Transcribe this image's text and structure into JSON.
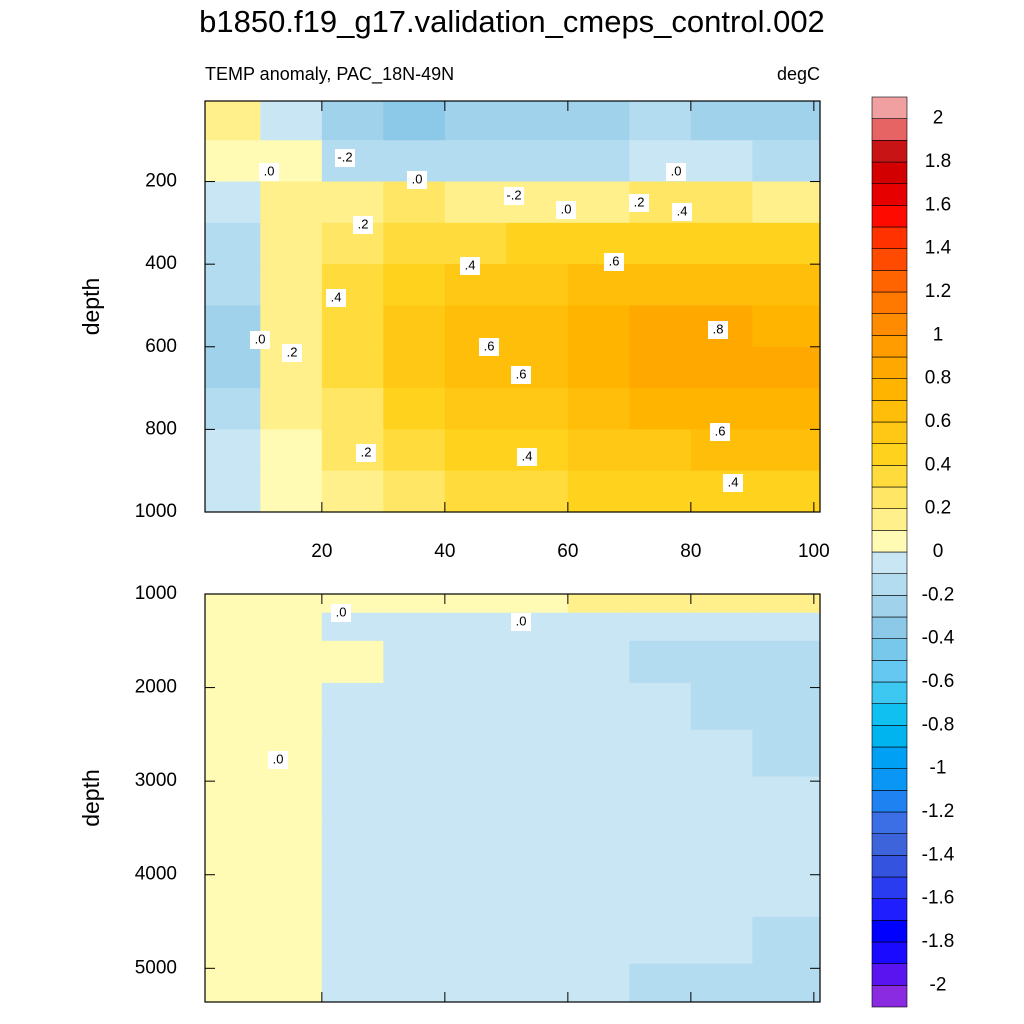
{
  "title": "b1850.f19_g17.validation_cmeps_control.002",
  "colorbar": {
    "ticks": [
      -2,
      -1.8,
      -1.6,
      -1.4,
      -1.2,
      -1,
      -0.8,
      -0.6,
      -0.4,
      -0.2,
      0,
      0.2,
      0.4,
      0.6,
      0.8,
      1,
      1.2,
      1.4,
      1.6,
      1.8,
      2
    ],
    "colors": [
      "#8a2be2",
      "#5a14f0",
      "#1a0aff",
      "#0000ff",
      "#1e1eff",
      "#2a3cf0",
      "#3454e0",
      "#3e64dc",
      "#3c6ee6",
      "#1e82f0",
      "#0a96f5",
      "#00a0f5",
      "#00b4f0",
      "#10c0f0",
      "#3cc8f0",
      "#64c8f0",
      "#78c8ec",
      "#8cc8e8",
      "#a0d2ec",
      "#b4dcf0",
      "#c8e6f4",
      "#fffab4",
      "#fff08c",
      "#ffe664",
      "#ffdc3c",
      "#ffd21e",
      "#ffc814",
      "#ffbe0a",
      "#ffb400",
      "#ffa800",
      "#ff9c00",
      "#ff8c00",
      "#ff7800",
      "#ff6400",
      "#ff4b00",
      "#ff3200",
      "#ff0a00",
      "#e60000",
      "#d20000",
      "#c81414",
      "#e66464",
      "#f0a0a0"
    ]
  },
  "chart_data": [
    {
      "type": "contour",
      "subtitle": "TEMP anomaly, PAC_18N-49N",
      "units": "degC",
      "ylabel": "depth",
      "x": [
        5,
        15,
        25,
        35,
        45,
        55,
        65,
        75,
        85,
        95
      ],
      "y": [
        50,
        150,
        250,
        350,
        450,
        550,
        650,
        750,
        850,
        950
      ],
      "z": [
        [
          0.1,
          -0.1,
          -0.3,
          -0.4,
          -0.3,
          -0.3,
          -0.3,
          -0.2,
          -0.3,
          -0.3
        ],
        [
          0.05,
          0.0,
          -0.2,
          -0.2,
          -0.2,
          -0.2,
          -0.2,
          -0.1,
          -0.1,
          -0.2
        ],
        [
          -0.1,
          0.1,
          0.1,
          0.2,
          0.1,
          0.1,
          0.1,
          0.2,
          0.2,
          0.1
        ],
        [
          -0.2,
          0.1,
          0.2,
          0.3,
          0.3,
          0.4,
          0.4,
          0.4,
          0.4,
          0.4
        ],
        [
          -0.2,
          0.1,
          0.3,
          0.4,
          0.5,
          0.5,
          0.6,
          0.6,
          0.6,
          0.6
        ],
        [
          -0.3,
          0.1,
          0.3,
          0.5,
          0.6,
          0.6,
          0.7,
          0.8,
          0.8,
          0.7
        ],
        [
          -0.3,
          0.1,
          0.3,
          0.5,
          0.6,
          0.6,
          0.7,
          0.8,
          0.8,
          0.8
        ],
        [
          -0.2,
          0.1,
          0.2,
          0.4,
          0.5,
          0.5,
          0.6,
          0.7,
          0.7,
          0.7
        ],
        [
          -0.1,
          0.0,
          0.2,
          0.3,
          0.4,
          0.4,
          0.5,
          0.5,
          0.6,
          0.6
        ],
        [
          -0.1,
          0.0,
          0.1,
          0.2,
          0.3,
          0.3,
          0.4,
          0.4,
          0.4,
          0.4
        ]
      ],
      "xlim": [
        1,
        101
      ],
      "ylim": [
        1000,
        5
      ],
      "xticks": [
        20,
        40,
        60,
        80,
        100
      ],
      "yticks": [
        200,
        400,
        600,
        800,
        1000
      ],
      "xtick_labels": true,
      "contour_labels": [
        ".0",
        "-.2",
        ".0",
        "-.2",
        ".0",
        ".2",
        ".4",
        ".0",
        ".2",
        ".4",
        ".6",
        ".4",
        ".0",
        ".2",
        ".6",
        ".6",
        ".8",
        ".6",
        ".2",
        ".4",
        ".4"
      ]
    },
    {
      "type": "contour",
      "ylabel": "depth",
      "x": [
        5,
        15,
        25,
        35,
        45,
        55,
        65,
        75,
        85,
        95
      ],
      "y": [
        1100,
        1300,
        1700,
        2200,
        2700,
        3200,
        3700,
        4200,
        4700,
        5200
      ],
      "z": [
        [
          0.05,
          0.05,
          0.05,
          0.05,
          0.05,
          0.05,
          0.1,
          0.1,
          0.1,
          0.1
        ],
        [
          0.05,
          0.05,
          -0.05,
          -0.05,
          -0.05,
          -0.05,
          -0.05,
          -0.05,
          -0.05,
          -0.05
        ],
        [
          0.05,
          0.05,
          0.05,
          -0.05,
          -0.05,
          -0.05,
          -0.05,
          -0.15,
          -0.15,
          -0.15
        ],
        [
          0.05,
          0.05,
          -0.05,
          -0.05,
          -0.05,
          -0.05,
          -0.05,
          -0.05,
          -0.15,
          -0.15
        ],
        [
          0.05,
          0.05,
          -0.05,
          -0.05,
          -0.05,
          -0.05,
          -0.05,
          -0.05,
          -0.05,
          -0.15
        ],
        [
          0.05,
          0.05,
          -0.05,
          -0.05,
          -0.05,
          -0.05,
          -0.05,
          -0.05,
          -0.05,
          -0.05
        ],
        [
          0.05,
          0.05,
          -0.05,
          -0.05,
          -0.05,
          -0.05,
          -0.05,
          -0.05,
          -0.05,
          -0.05
        ],
        [
          0.05,
          0.05,
          -0.05,
          -0.05,
          -0.05,
          -0.05,
          -0.05,
          -0.05,
          -0.05,
          -0.05
        ],
        [
          0.05,
          0.05,
          -0.05,
          -0.05,
          -0.05,
          -0.05,
          -0.05,
          -0.05,
          -0.05,
          -0.15
        ],
        [
          0.05,
          0.05,
          -0.05,
          -0.05,
          -0.05,
          -0.05,
          -0.05,
          -0.15,
          -0.15,
          -0.15
        ]
      ],
      "xlim": [
        1,
        101
      ],
      "ylim": [
        5360,
        1000
      ],
      "xticks": [
        20,
        40,
        60,
        80,
        100
      ],
      "yticks": [
        1000,
        2000,
        3000,
        4000,
        5000
      ],
      "xtick_labels": false,
      "contour_labels": [
        ".0",
        ".0",
        ".0"
      ]
    }
  ]
}
